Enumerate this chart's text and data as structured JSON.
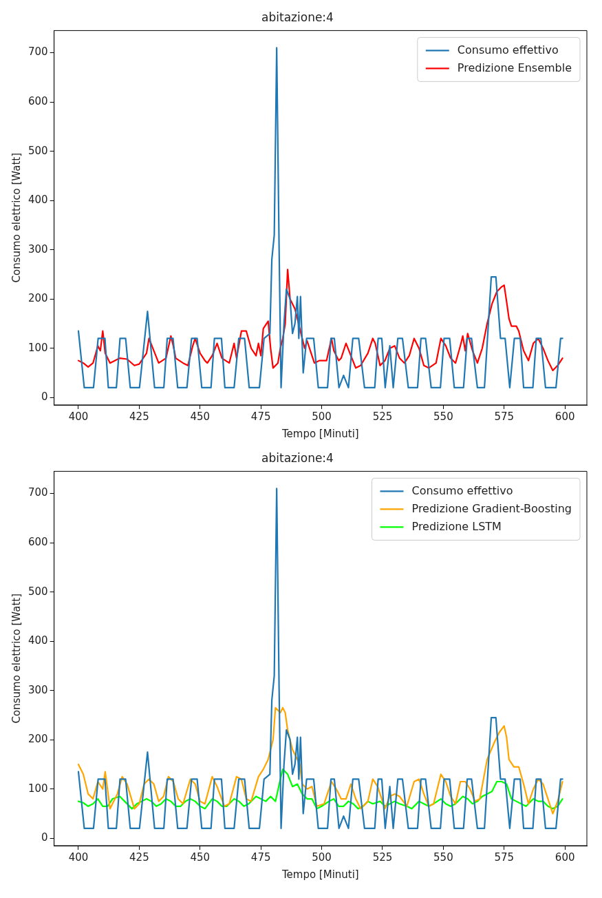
{
  "chart_data": [
    {
      "type": "line",
      "title": "abitazione:4",
      "xlabel": "Tempo [Minuti]",
      "ylabel": "Consumo elettrico [Watt]",
      "xlim": [
        390,
        609
      ],
      "ylim": [
        -15,
        745
      ],
      "xticks": [
        400,
        425,
        450,
        475,
        500,
        525,
        550,
        575,
        600
      ],
      "yticks": [
        0,
        100,
        200,
        300,
        400,
        500,
        600,
        700
      ],
      "grid": false,
      "legend": "top right",
      "marker": "none",
      "line_style": "solid",
      "series": [
        {
          "name": "Consumo effettivo",
          "color": "#1f77b4",
          "x": [
            400,
            402.4,
            406.2,
            408.1,
            410.9,
            412.3,
            415.6,
            417.1,
            419.4,
            421.3,
            425.1,
            428.4,
            431.3,
            435.1,
            436.5,
            438.9,
            440.8,
            444.6,
            446.5,
            448.8,
            450.7,
            454.5,
            455.9,
            458.8,
            460.2,
            464.0,
            465.9,
            468.3,
            470.2,
            474.4,
            476.3,
            478.7,
            479.5,
            480.5,
            481.5,
            482.5,
            483.3,
            484.5,
            485.5,
            487,
            488,
            489,
            490,
            490.6,
            491.3,
            492.4,
            493.8,
            496.7,
            498.6,
            502.4,
            503.8,
            505.2,
            507.1,
            509,
            511,
            512.8,
            515.2,
            517.6,
            521.8,
            523.2,
            524.7,
            526.1,
            528,
            529.4,
            531.3,
            533.2,
            535.6,
            539.4,
            540.8,
            542.7,
            545,
            548.8,
            550.3,
            552.6,
            554.5,
            558.3,
            559.8,
            561.6,
            564,
            566.9,
            569.7,
            571.6,
            573.5,
            575.4,
            577.3,
            579.2,
            581.6,
            583,
            586.8,
            588.2,
            590.1,
            592,
            596.3,
            598.2,
            599
          ],
          "values": [
            135,
            20,
            20,
            120,
            120,
            20,
            20,
            120,
            120,
            20,
            20,
            175,
            20,
            20,
            120,
            120,
            20,
            20,
            120,
            120,
            20,
            20,
            120,
            120,
            20,
            20,
            120,
            120,
            20,
            20,
            120,
            130,
            280,
            330,
            710,
            300,
            20,
            150,
            220,
            200,
            130,
            150,
            205,
            120,
            205,
            50,
            120,
            120,
            20,
            20,
            120,
            120,
            20,
            45,
            20,
            120,
            120,
            20,
            20,
            120,
            120,
            20,
            105,
            20,
            120,
            120,
            20,
            20,
            120,
            120,
            20,
            20,
            120,
            120,
            20,
            20,
            120,
            120,
            20,
            20,
            245,
            245,
            120,
            120,
            20,
            120,
            120,
            20,
            20,
            120,
            120,
            20,
            20,
            120,
            120
          ]
        },
        {
          "name": "Predizione Ensemble",
          "color": "#ff0000",
          "x": [
            400,
            402,
            404,
            406,
            408,
            409,
            410,
            411,
            413,
            417,
            420,
            423,
            425,
            428,
            429,
            431,
            433,
            436,
            438,
            439,
            440,
            443,
            445,
            447,
            448,
            450,
            452,
            453,
            455,
            457,
            459,
            462,
            464,
            465,
            467,
            469,
            471,
            473,
            474,
            475,
            476,
            478,
            479,
            480,
            482,
            483,
            484,
            485,
            486,
            487,
            489,
            490,
            492,
            493,
            494,
            495,
            497,
            499,
            502,
            504,
            505,
            507,
            508,
            510,
            512,
            514,
            516,
            519,
            521,
            522,
            524,
            526,
            528,
            530,
            532,
            534,
            536,
            538,
            540,
            542,
            544,
            547,
            549,
            551,
            553,
            555,
            557,
            558,
            559,
            560,
            562,
            564,
            566,
            568,
            570,
            572,
            574,
            575,
            576,
            577,
            578,
            580,
            581,
            583,
            585,
            587,
            589,
            591,
            593,
            595,
            597,
            599
          ],
          "values": [
            75,
            70,
            62,
            70,
            105,
            95,
            135,
            90,
            70,
            80,
            78,
            65,
            68,
            90,
            120,
            95,
            70,
            80,
            125,
            105,
            80,
            70,
            65,
            105,
            120,
            90,
            75,
            70,
            85,
            110,
            80,
            70,
            110,
            80,
            135,
            135,
            100,
            85,
            110,
            85,
            140,
            155,
            100,
            60,
            70,
            100,
            120,
            150,
            260,
            200,
            180,
            160,
            120,
            100,
            115,
            100,
            70,
            75,
            75,
            120,
            95,
            75,
            80,
            110,
            85,
            60,
            65,
            90,
            120,
            110,
            65,
            75,
            100,
            105,
            80,
            70,
            85,
            120,
            100,
            65,
            60,
            70,
            120,
            105,
            80,
            70,
            105,
            125,
            95,
            130,
            95,
            70,
            100,
            150,
            190,
            215,
            225,
            228,
            195,
            160,
            145,
            145,
            135,
            95,
            75,
            110,
            120,
            100,
            75,
            55,
            65,
            80
          ]
        }
      ]
    },
    {
      "type": "line",
      "title": "abitazione:4",
      "xlabel": "Tempo [Minuti]",
      "ylabel": "Consumo elettrico [Watt]",
      "xlim": [
        390,
        609
      ],
      "ylim": [
        -15,
        745
      ],
      "xticks": [
        400,
        425,
        450,
        475,
        500,
        525,
        550,
        575,
        600
      ],
      "yticks": [
        0,
        100,
        200,
        300,
        400,
        500,
        600,
        700
      ],
      "grid": false,
      "legend": "top right",
      "marker": "none",
      "line_style": "solid",
      "series": [
        {
          "name": "Consumo effettivo",
          "color": "#1f77b4",
          "x": [
            400,
            402.4,
            406.2,
            408.1,
            410.9,
            412.3,
            415.6,
            417.1,
            419.4,
            421.3,
            425.1,
            428.4,
            431.3,
            435.1,
            436.5,
            438.9,
            440.8,
            444.6,
            446.5,
            448.8,
            450.7,
            454.5,
            455.9,
            458.8,
            460.2,
            464.0,
            465.9,
            468.3,
            470.2,
            474.4,
            476.3,
            478.7,
            479.5,
            480.5,
            481.5,
            482.5,
            483.3,
            484.5,
            485.5,
            487,
            488,
            489,
            490,
            490.6,
            491.3,
            492.4,
            493.8,
            496.7,
            498.6,
            502.4,
            503.8,
            505.2,
            507.1,
            509,
            511,
            512.8,
            515.2,
            517.6,
            521.8,
            523.2,
            524.7,
            526.1,
            528,
            529.4,
            531.3,
            533.2,
            535.6,
            539.4,
            540.8,
            542.7,
            545,
            548.8,
            550.3,
            552.6,
            554.5,
            558.3,
            559.8,
            561.6,
            564,
            566.9,
            569.7,
            571.6,
            573.5,
            575.4,
            577.3,
            579.2,
            581.6,
            583,
            586.8,
            588.2,
            590.1,
            592,
            596.3,
            598.2,
            599
          ],
          "values": [
            135,
            20,
            20,
            120,
            120,
            20,
            20,
            120,
            120,
            20,
            20,
            175,
            20,
            20,
            120,
            120,
            20,
            20,
            120,
            120,
            20,
            20,
            120,
            120,
            20,
            20,
            120,
            120,
            20,
            20,
            120,
            130,
            280,
            330,
            710,
            300,
            20,
            150,
            220,
            200,
            130,
            150,
            205,
            120,
            205,
            50,
            120,
            120,
            20,
            20,
            120,
            120,
            20,
            45,
            20,
            120,
            120,
            20,
            20,
            120,
            120,
            20,
            105,
            20,
            120,
            120,
            20,
            20,
            120,
            120,
            20,
            20,
            120,
            120,
            20,
            20,
            120,
            120,
            20,
            20,
            245,
            245,
            120,
            120,
            20,
            120,
            120,
            20,
            20,
            120,
            120,
            20,
            20,
            120,
            120
          ]
        },
        {
          "name": "Predizione Gradient-Boosting",
          "color": "#ffa500",
          "x": [
            400,
            402,
            404,
            406,
            408,
            410,
            411,
            413,
            416,
            418,
            420,
            423,
            425,
            427,
            429,
            431,
            433,
            435,
            437,
            439,
            441,
            443,
            446,
            448,
            450,
            452,
            455,
            457,
            460,
            462,
            465,
            467,
            469,
            471,
            474,
            476,
            478,
            480,
            481,
            483,
            484,
            485,
            486,
            488,
            490,
            491,
            492,
            494,
            496,
            498,
            501,
            504,
            506,
            508,
            510,
            512,
            514,
            516,
            519,
            521,
            523,
            526,
            528,
            530,
            532,
            535,
            538,
            540,
            542,
            544,
            546,
            549,
            551,
            553,
            555,
            557,
            559,
            561,
            563,
            565,
            568,
            571,
            573,
            575,
            576,
            577,
            579,
            581,
            583,
            585,
            587,
            589,
            591,
            593,
            595,
            597,
            599
          ],
          "values": [
            150,
            130,
            90,
            80,
            115,
            100,
            135,
            60,
            90,
            125,
            110,
            60,
            70,
            110,
            120,
            110,
            75,
            85,
            125,
            115,
            80,
            70,
            120,
            110,
            75,
            70,
            125,
            105,
            65,
            70,
            125,
            120,
            80,
            75,
            125,
            140,
            160,
            200,
            265,
            255,
            265,
            255,
            220,
            180,
            160,
            150,
            110,
            100,
            105,
            65,
            70,
            115,
            100,
            80,
            80,
            110,
            80,
            60,
            75,
            120,
            105,
            60,
            85,
            90,
            85,
            65,
            115,
            120,
            90,
            65,
            70,
            130,
            115,
            85,
            70,
            115,
            115,
            100,
            75,
            80,
            160,
            195,
            215,
            228,
            205,
            160,
            145,
            145,
            110,
            70,
            100,
            120,
            110,
            80,
            50,
            75,
            115
          ]
        },
        {
          "name": "Predizione LSTM",
          "color": "#00ff00",
          "x": [
            400,
            402,
            404,
            406,
            408,
            410,
            412,
            414,
            417,
            419,
            422,
            424,
            426,
            428,
            430,
            432,
            434,
            436,
            438,
            440,
            442,
            444,
            446,
            448,
            450,
            452,
            455,
            457,
            459,
            461,
            464,
            466,
            468,
            470,
            473,
            475,
            477,
            479,
            481,
            483,
            484,
            486,
            488,
            490,
            492,
            494,
            496,
            498,
            500,
            503,
            505,
            507,
            509,
            511,
            513,
            515,
            517,
            519,
            521,
            524,
            526,
            528,
            530,
            532,
            535,
            537,
            540,
            542,
            544,
            546,
            549,
            551,
            553,
            555,
            558,
            560,
            562,
            564,
            566,
            568,
            570,
            572,
            574,
            576,
            578,
            580,
            582,
            584,
            587,
            589,
            591,
            593,
            595,
            597,
            599
          ],
          "values": [
            75,
            72,
            65,
            70,
            80,
            65,
            65,
            80,
            85,
            75,
            60,
            70,
            75,
            80,
            75,
            65,
            70,
            80,
            75,
            65,
            65,
            75,
            80,
            75,
            65,
            60,
            80,
            75,
            65,
            65,
            80,
            75,
            65,
            70,
            85,
            80,
            75,
            85,
            75,
            120,
            140,
            130,
            105,
            110,
            90,
            80,
            80,
            60,
            65,
            75,
            80,
            65,
            65,
            75,
            70,
            60,
            65,
            75,
            70,
            75,
            65,
            70,
            75,
            70,
            65,
            60,
            75,
            70,
            65,
            70,
            80,
            70,
            65,
            70,
            85,
            80,
            70,
            75,
            85,
            90,
            95,
            115,
            115,
            110,
            80,
            75,
            70,
            65,
            80,
            75,
            75,
            65,
            60,
            65,
            80
          ]
        }
      ]
    }
  ]
}
